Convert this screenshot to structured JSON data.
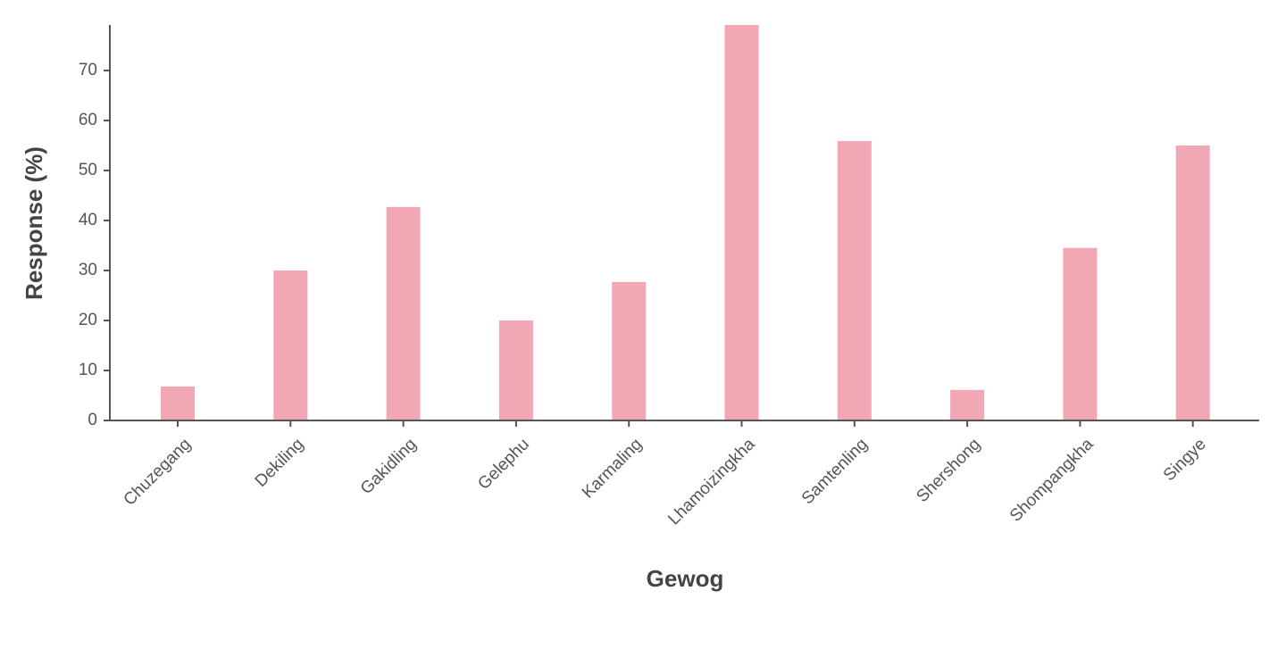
{
  "chart_data": {
    "type": "bar",
    "x_label": "Gewog",
    "y_label": "Response (%)",
    "categories": [
      "Chuzegang",
      "Dekiling",
      "Gakidling",
      "Gelephu",
      "Karmaling",
      "Lhamoizingkha",
      "Samtenling",
      "Shershong",
      "Shompangkha",
      "Singye"
    ],
    "values": [
      6.8,
      30,
      42.7,
      20,
      27.7,
      79.1,
      55.9,
      6.1,
      34.5,
      55
    ],
    "color": "#f2a8b4",
    "ylim": [
      0,
      79.1
    ],
    "yticks": [
      0,
      10,
      20,
      30,
      40,
      50,
      60,
      70
    ],
    "grid": false
  }
}
